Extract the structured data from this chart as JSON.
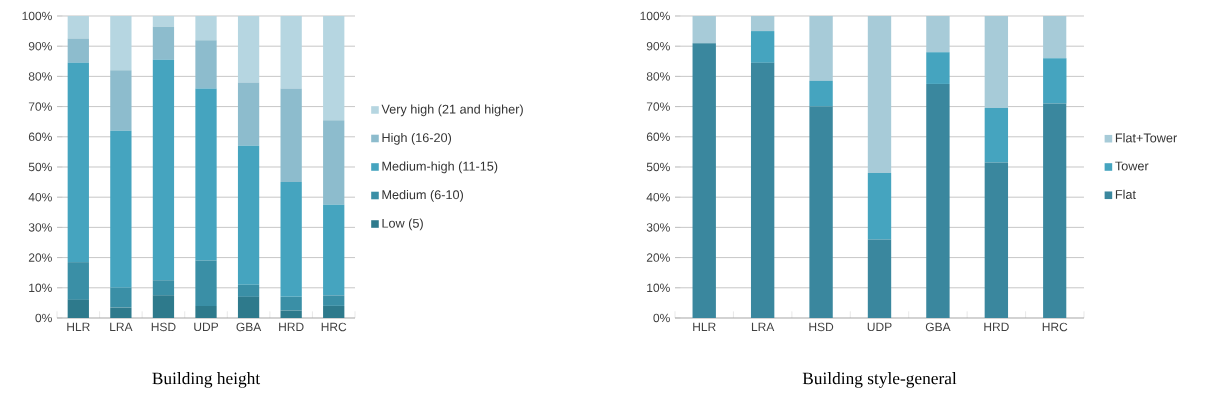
{
  "chart_data": [
    {
      "type": "bar",
      "title": "Building height",
      "stacked": true,
      "legend": "right",
      "grid": "y",
      "categories": [
        "HLR",
        "LRA",
        "HSD",
        "UDP",
        "GBA",
        "HRD",
        "HRC"
      ],
      "ylim": [
        0,
        100
      ],
      "yticks": [
        {
          "value": 0,
          "label": "0%"
        },
        {
          "value": 10,
          "label": "10%"
        },
        {
          "value": 20,
          "label": "20%"
        },
        {
          "value": 30,
          "label": "30%"
        },
        {
          "value": 40,
          "label": "40%"
        },
        {
          "value": 50,
          "label": "50%"
        },
        {
          "value": 60,
          "label": "60%"
        },
        {
          "value": 70,
          "label": "70%"
        },
        {
          "value": 80,
          "label": "80%"
        },
        {
          "value": 90,
          "label": "90%"
        },
        {
          "value": 100,
          "label": "100%"
        }
      ],
      "series": [
        {
          "name": "Low (5)",
          "color": "#2e7a8c",
          "values": [
            6,
            3.5,
            7.5,
            4,
            7,
            2.5,
            4
          ]
        },
        {
          "name": "Medium (6-10)",
          "color": "#3a8fa6",
          "values": [
            12.5,
            6.5,
            5,
            15,
            4,
            4.5,
            3.5
          ]
        },
        {
          "name": "Medium-high (11-15)",
          "color": "#45a4bf",
          "values": [
            66,
            52,
            73,
            57,
            46,
            38,
            30
          ]
        },
        {
          "name": "High (16-20)",
          "color": "#8dbccd",
          "values": [
            8,
            20,
            11,
            16,
            21,
            31,
            28
          ]
        },
        {
          "name": "Very high (21 and higher)",
          "color": "#b6d6e1",
          "values": [
            7.5,
            18,
            3.5,
            8,
            22,
            24,
            34.5
          ]
        }
      ]
    },
    {
      "type": "bar",
      "title": "Building style-general",
      "stacked": true,
      "legend": "right",
      "grid": "y",
      "categories": [
        "HLR",
        "LRA",
        "HSD",
        "UDP",
        "GBA",
        "HRD",
        "HRC"
      ],
      "ylim": [
        0,
        100
      ],
      "yticks": [
        {
          "value": 0,
          "label": "0%"
        },
        {
          "value": 10,
          "label": "10%"
        },
        {
          "value": 20,
          "label": "20%"
        },
        {
          "value": 30,
          "label": "30%"
        },
        {
          "value": 40,
          "label": "40%"
        },
        {
          "value": 50,
          "label": "50%"
        },
        {
          "value": 60,
          "label": "60%"
        },
        {
          "value": 70,
          "label": "70%"
        },
        {
          "value": 80,
          "label": "80%"
        },
        {
          "value": 90,
          "label": "90%"
        },
        {
          "value": 100,
          "label": "100%"
        }
      ],
      "series": [
        {
          "name": "Flat",
          "color": "#3a879e",
          "values": [
            91,
            84.5,
            70,
            26,
            77.5,
            51.5,
            71
          ]
        },
        {
          "name": "Tower",
          "color": "#45a4bf",
          "values": [
            0,
            10.5,
            8.5,
            22,
            10.5,
            18,
            15
          ]
        },
        {
          "name": "Flat+Tower",
          "color": "#a7cbd8",
          "values": [
            9,
            5,
            21.5,
            52,
            12,
            30.5,
            14
          ]
        }
      ]
    }
  ]
}
